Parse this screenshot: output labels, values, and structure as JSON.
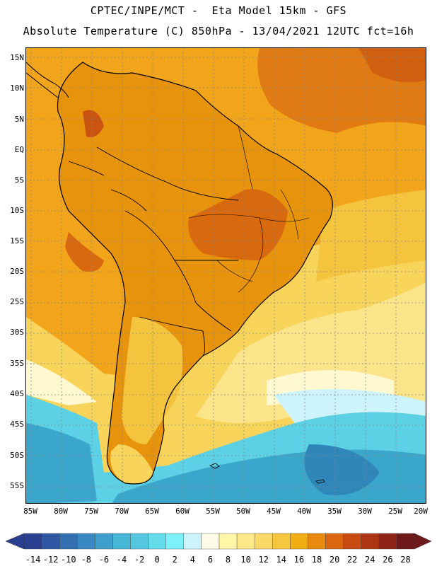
{
  "header": {
    "line1": "CPTEC/INPE/MCT -  Eta Model 15km - GFS",
    "line2": "Absolute Temperature (C) 850hPa - 13/04/2021 12UTC fct=16h"
  },
  "map": {
    "lat_ticks": [
      "15N",
      "10N",
      "5N",
      "EQ",
      "5S",
      "10S",
      "15S",
      "20S",
      "25S",
      "30S",
      "35S",
      "40S",
      "45S",
      "50S",
      "55S"
    ],
    "lon_ticks": [
      "85W",
      "80W",
      "75W",
      "70W",
      "65W",
      "60W",
      "55W",
      "50W",
      "45W",
      "40W",
      "35W",
      "30W",
      "25W",
      "20W"
    ]
  },
  "colorbar": {
    "labels": [
      "-14",
      "-12",
      "-10",
      "-8",
      "-6",
      "-4",
      "-2",
      "0",
      "2",
      "4",
      "6",
      "8",
      "10",
      "12",
      "14",
      "16",
      "18",
      "20",
      "22",
      "24",
      "26",
      "28"
    ],
    "colors": [
      "#2a3f8f",
      "#2f57a3",
      "#3370b2",
      "#3a88c2",
      "#3f9fcc",
      "#48b6d6",
      "#55c8e0",
      "#64dcec",
      "#7cf2f8",
      "#cdf3fb",
      "#fffbe6",
      "#fff6a8",
      "#fde98a",
      "#fbd966",
      "#f7c640",
      "#f1ae14",
      "#e88a0d",
      "#db6611",
      "#c64a12",
      "#ad3513",
      "#8e2417",
      "#6e1a1a"
    ]
  },
  "palette": {
    "ocean_warm": "#f2a51a",
    "land_warm": "#e8930c",
    "land_hot": "#d9690f",
    "cool_yellow": "#f8d45a",
    "pale": "#fff8d0",
    "cyan": "#5cd0e4",
    "blue": "#3aa6cc",
    "dark_blue": "#2f86b8"
  }
}
